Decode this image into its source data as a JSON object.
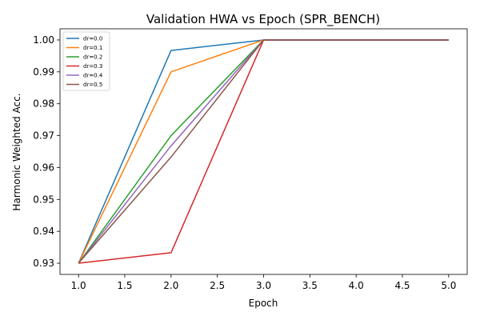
{
  "chart_data": {
    "type": "line",
    "title": "Validation HWA vs Epoch (SPR_BENCH)",
    "xlabel": "Epoch",
    "ylabel": "Harmonic Weighted Acc.",
    "x": [
      1,
      2,
      3,
      4,
      5
    ],
    "xlim": [
      0.8,
      5.2
    ],
    "ylim": [
      0.9265,
      1.0035
    ],
    "xticks": [
      "1.0",
      "1.5",
      "2.0",
      "2.5",
      "3.0",
      "3.5",
      "4.0",
      "4.5",
      "5.0"
    ],
    "yticks": [
      "0.93",
      "0.94",
      "0.95",
      "0.96",
      "0.97",
      "0.98",
      "0.99",
      "1.00"
    ],
    "grid": false,
    "legend_position": "top-left",
    "series": [
      {
        "name": "dr=0.0",
        "color": "#1f77b4",
        "values": [
          0.93,
          0.9967,
          1.0,
          1.0,
          1.0
        ]
      },
      {
        "name": "dr=0.1",
        "color": "#ff7f0e",
        "values": [
          0.93,
          0.99,
          1.0,
          1.0,
          1.0
        ]
      },
      {
        "name": "dr=0.2",
        "color": "#2ca02c",
        "values": [
          0.93,
          0.97,
          1.0,
          1.0,
          1.0
        ]
      },
      {
        "name": "dr=0.3",
        "color": "#d62728",
        "values": [
          0.93,
          0.9333,
          1.0,
          1.0,
          1.0
        ]
      },
      {
        "name": "dr=0.4",
        "color": "#9467bd",
        "values": [
          0.93,
          0.9668,
          1.0,
          1.0,
          1.0
        ]
      },
      {
        "name": "dr=0.5",
        "color": "#8c564b",
        "values": [
          0.93,
          0.9633,
          1.0,
          1.0,
          1.0
        ]
      }
    ]
  }
}
